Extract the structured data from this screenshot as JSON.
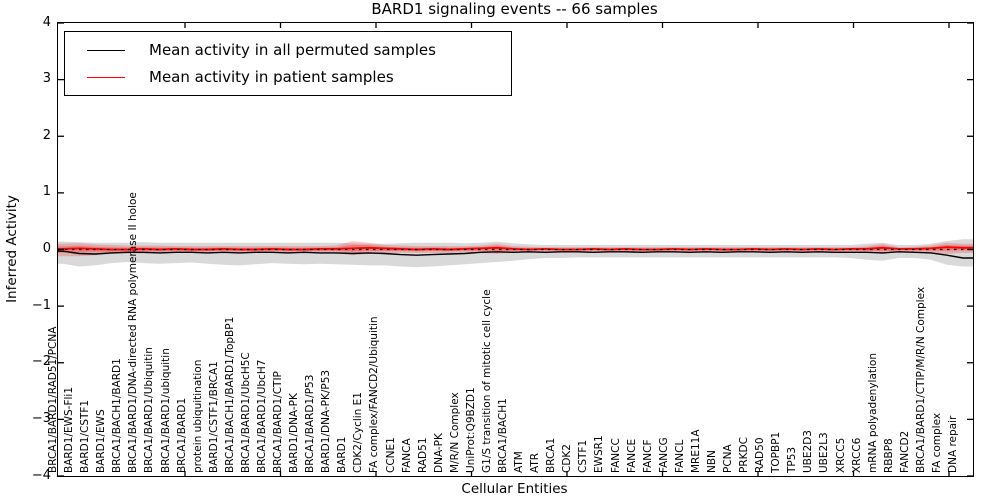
{
  "title": "BARD1 signaling events -- 66 samples",
  "legend": [
    {
      "label": "Mean activity in all permuted samples",
      "color": "#000000"
    },
    {
      "label": "Mean activity in patient samples",
      "color": "#ff0000"
    }
  ],
  "chart_data": {
    "type": "line",
    "title": "BARD1 signaling events -- 66 samples",
    "xlabel": "Cellular Entities",
    "ylabel": "Inferred Activity",
    "ylim": [
      -4,
      4
    ],
    "ytick_labels": [
      "4",
      "3",
      "2",
      "1",
      "0",
      "−1",
      "−2",
      "−3",
      "−4"
    ],
    "yticks": [
      4,
      3,
      2,
      1,
      0,
      -1,
      -2,
      -3,
      -4
    ],
    "grid": false,
    "legend_position": "upper left",
    "categories": [
      "BRCA1/BARD1/RAD51/PCNA",
      "BARD1/EWS-Fli1",
      "BARD1/CSTF1",
      "BARD1/EWS",
      "BRCA1/BACH1/BARD1",
      "BRCA1/BARD1/DNA-directed RNA polymerase II holoe",
      "BRCA1/BARD1/Ubiquitin",
      "BRCA1/BARD1/ubiquitin",
      "BRCA1/BARD1",
      "protein ubiquitination",
      "BARD1/CSTF1/BRCA1",
      "BRCA1/BACH1/BARD1/TopBP1",
      "BRCA1/BARD1/UbcH5C",
      "BRCA1/BARD1/UbcH7",
      "BRCA1/BARD1/CTIP",
      "BARD1/DNA-PK",
      "BRCA1/BARD1/P53",
      "BARD1/DNA-PK/P53",
      "BARD1",
      "CDK2/Cyclin E1",
      "FA complex/FANCD2/Ubiquitin",
      "CCNE1",
      "FANCA",
      "RAD51",
      "DNA-PK",
      "M/R/N Complex",
      "UniProt:Q9BZD1",
      "G1/S transition of mitotic cell cycle",
      "BRCA1/BACH1",
      "ATM",
      "ATR",
      "BRCA1",
      "CDK2",
      "CSTF1",
      "EWSR1",
      "FANCC",
      "FANCE",
      "FANCF",
      "FANCG",
      "FANCL",
      "MRE11A",
      "NBN",
      "PCNA",
      "PRKDC",
      "RAD50",
      "TOPBP1",
      "TP53",
      "UBE2D3",
      "UBE2L3",
      "XRCC5",
      "XRCC6",
      "mRNA polyadenylation",
      "RBBP8",
      "FANCD2",
      "BRCA1/BARD1/CTIP/M/R/N Complex",
      "FA complex",
      "DNA repair"
    ],
    "series": [
      {
        "name": "Mean activity in all permuted samples",
        "color": "#000000",
        "values": [
          -0.03,
          -0.07,
          -0.08,
          -0.06,
          -0.05,
          -0.05,
          -0.06,
          -0.05,
          -0.05,
          -0.06,
          -0.05,
          -0.06,
          -0.05,
          -0.05,
          -0.06,
          -0.05,
          -0.06,
          -0.06,
          -0.07,
          -0.06,
          -0.07,
          -0.09,
          -0.1,
          -0.09,
          -0.08,
          -0.07,
          -0.05,
          -0.04,
          -0.05,
          -0.04,
          -0.05,
          -0.04,
          -0.04,
          -0.05,
          -0.04,
          -0.04,
          -0.05,
          -0.04,
          -0.04,
          -0.05,
          -0.04,
          -0.05,
          -0.04,
          -0.04,
          -0.05,
          -0.04,
          -0.05,
          -0.04,
          -0.05,
          -0.05,
          -0.05,
          -0.06,
          -0.04,
          -0.05,
          -0.06,
          -0.1,
          -0.15
        ]
      },
      {
        "name": "Mean activity in patient samples",
        "color": "#ff0000",
        "values": [
          0.01,
          0.02,
          0.01,
          0.0,
          0.0,
          0.01,
          0.0,
          0.01,
          0.0,
          0.0,
          0.01,
          0.0,
          0.0,
          0.01,
          0.0,
          0.0,
          0.01,
          0.01,
          0.02,
          0.03,
          0.02,
          0.01,
          0.0,
          0.01,
          0.0,
          0.01,
          0.02,
          0.03,
          0.01,
          0.0,
          0.01,
          0.0,
          0.0,
          0.01,
          0.0,
          0.01,
          0.0,
          0.0,
          0.01,
          0.0,
          0.01,
          0.0,
          0.0,
          0.01,
          0.0,
          0.01,
          0.0,
          0.01,
          0.0,
          0.01,
          0.01,
          0.03,
          0.01,
          0.01,
          0.02,
          0.04,
          0.03
        ]
      }
    ],
    "bands": [
      {
        "name": "permuted samples range",
        "color": "rgba(0,0,0,0.15)",
        "hi": [
          0.14,
          0.13,
          0.12,
          0.12,
          0.12,
          0.13,
          0.12,
          0.12,
          0.12,
          0.12,
          0.12,
          0.12,
          0.12,
          0.12,
          0.12,
          0.12,
          0.12,
          0.12,
          0.11,
          0.1,
          0.1,
          0.11,
          0.12,
          0.12,
          0.12,
          0.11,
          0.12,
          0.14,
          0.11,
          0.09,
          0.08,
          0.08,
          0.08,
          0.08,
          0.08,
          0.08,
          0.08,
          0.08,
          0.08,
          0.08,
          0.08,
          0.08,
          0.08,
          0.08,
          0.08,
          0.08,
          0.08,
          0.08,
          0.08,
          0.08,
          0.1,
          0.12,
          0.08,
          0.08,
          0.1,
          0.15,
          0.18
        ],
        "lo": [
          -0.25,
          -0.3,
          -0.28,
          -0.24,
          -0.22,
          -0.24,
          -0.25,
          -0.24,
          -0.23,
          -0.25,
          -0.27,
          -0.28,
          -0.26,
          -0.24,
          -0.25,
          -0.26,
          -0.25,
          -0.26,
          -0.27,
          -0.28,
          -0.28,
          -0.3,
          -0.31,
          -0.3,
          -0.28,
          -0.26,
          -0.24,
          -0.22,
          -0.2,
          -0.17,
          -0.15,
          -0.15,
          -0.14,
          -0.14,
          -0.14,
          -0.14,
          -0.14,
          -0.14,
          -0.14,
          -0.14,
          -0.14,
          -0.14,
          -0.14,
          -0.14,
          -0.14,
          -0.14,
          -0.14,
          -0.14,
          -0.14,
          -0.15,
          -0.18,
          -0.2,
          -0.15,
          -0.15,
          -0.18,
          -0.27,
          -0.3
        ]
      },
      {
        "name": "patient samples range",
        "color": "rgba(255,0,0,0.2)",
        "hi": [
          0.1,
          0.11,
          0.09,
          0.08,
          0.07,
          0.07,
          0.07,
          0.06,
          0.06,
          0.06,
          0.06,
          0.06,
          0.06,
          0.06,
          0.06,
          0.06,
          0.06,
          0.07,
          0.15,
          0.12,
          0.08,
          0.07,
          0.06,
          0.06,
          0.06,
          0.06,
          0.07,
          0.1,
          0.06,
          0.05,
          0.04,
          0.04,
          0.04,
          0.04,
          0.04,
          0.04,
          0.04,
          0.04,
          0.04,
          0.04,
          0.04,
          0.04,
          0.04,
          0.04,
          0.04,
          0.04,
          0.04,
          0.04,
          0.04,
          0.04,
          0.06,
          0.1,
          0.04,
          0.05,
          0.07,
          0.12,
          0.1
        ],
        "lo": [
          -0.12,
          -0.12,
          -0.1,
          -0.08,
          -0.07,
          -0.07,
          -0.07,
          -0.06,
          -0.06,
          -0.06,
          -0.06,
          -0.06,
          -0.06,
          -0.06,
          -0.06,
          -0.06,
          -0.06,
          -0.06,
          -0.1,
          -0.08,
          -0.07,
          -0.06,
          -0.06,
          -0.06,
          -0.06,
          -0.05,
          -0.06,
          -0.08,
          -0.05,
          -0.04,
          -0.04,
          -0.04,
          -0.04,
          -0.04,
          -0.04,
          -0.04,
          -0.04,
          -0.04,
          -0.04,
          -0.04,
          -0.04,
          -0.04,
          -0.04,
          -0.04,
          -0.04,
          -0.04,
          -0.04,
          -0.04,
          -0.04,
          -0.04,
          -0.05,
          -0.08,
          -0.04,
          -0.04,
          -0.06,
          -0.08,
          -0.06
        ]
      }
    ],
    "zero_line": {
      "y": 0,
      "style": "dashed",
      "color": "#000000"
    }
  }
}
